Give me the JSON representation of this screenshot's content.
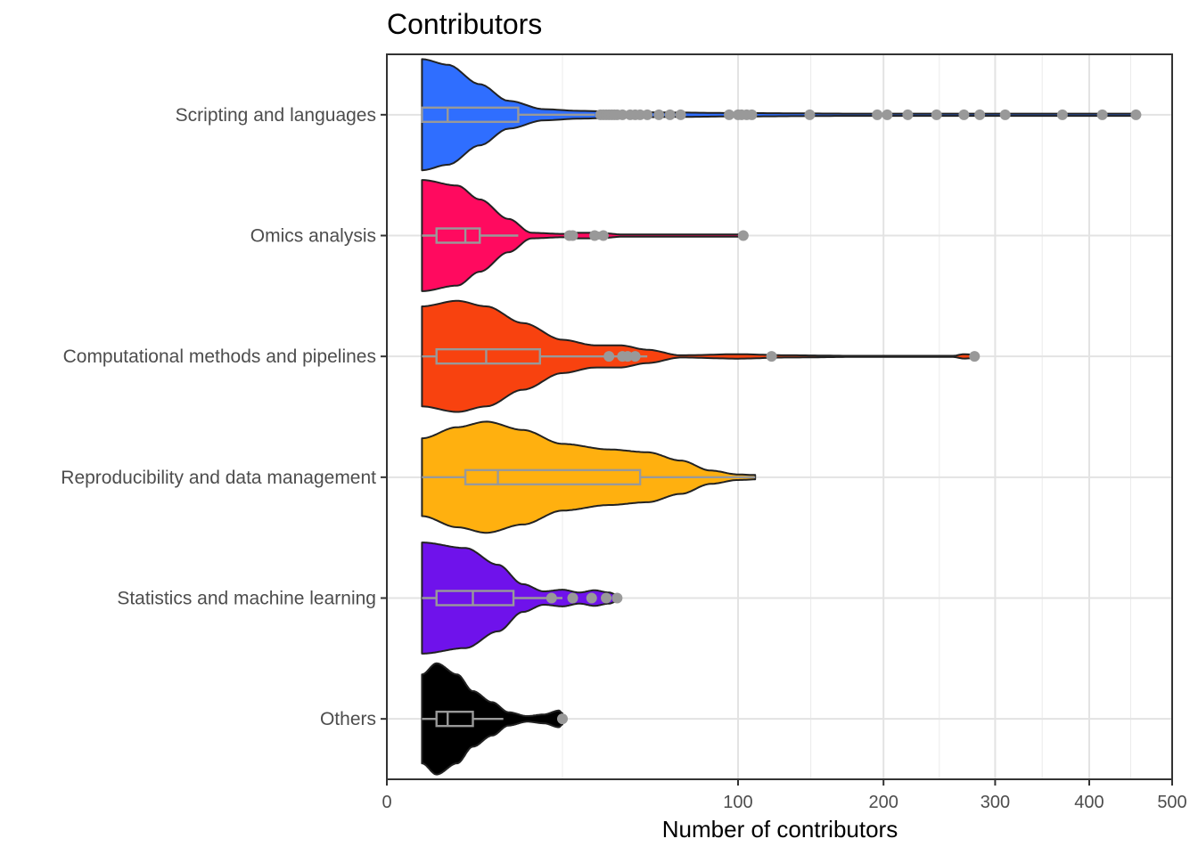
{
  "chart_data": {
    "type": "violin",
    "title": "Contributors",
    "xlabel": "Number of contributors",
    "ylabel": "",
    "x_scale": "sqrt",
    "xlim": [
      0,
      500
    ],
    "x_ticks": [
      0,
      100,
      200,
      300,
      400,
      500
    ],
    "x_tick_labels": [
      "0",
      "100",
      "200",
      "300",
      "400",
      "500"
    ],
    "grid": true,
    "legend": "none",
    "box_color": "#999999",
    "point_color": "#999999",
    "outline_color": "#222222",
    "series": [
      {
        "category": "Scripting and languages",
        "color": "#2F6EFF",
        "box": {
          "min": 1,
          "q1": 1,
          "median": 3,
          "q3": 14,
          "max": 35
        },
        "outliers": [
          37,
          38,
          39,
          40,
          41,
          42,
          43,
          45,
          48,
          50,
          52,
          55,
          60,
          65,
          70,
          95,
          100,
          102,
          105,
          108,
          145,
          195,
          203,
          220,
          245,
          270,
          285,
          310,
          370,
          415,
          455
        ],
        "density": [
          [
            1,
            1.0
          ],
          [
            3,
            0.9
          ],
          [
            7,
            0.55
          ],
          [
            12,
            0.25
          ],
          [
            20,
            0.1
          ],
          [
            30,
            0.07
          ],
          [
            45,
            0.05
          ],
          [
            65,
            0.04
          ],
          [
            100,
            0.03
          ],
          [
            180,
            0.02
          ],
          [
            300,
            0.02
          ],
          [
            400,
            0.02
          ],
          [
            455,
            0.02
          ]
        ]
      },
      {
        "category": "Omics analysis",
        "color": "#FF0A5F",
        "box": {
          "min": 1,
          "q1": 2,
          "median": 5,
          "q3": 7,
          "max": 14
        },
        "outliers": [
          27,
          28,
          35,
          38,
          103
        ],
        "density": [
          [
            1,
            1.0
          ],
          [
            4,
            0.9
          ],
          [
            7,
            0.65
          ],
          [
            12,
            0.3
          ],
          [
            17,
            0.05
          ],
          [
            25,
            0.03
          ],
          [
            30,
            0.05
          ],
          [
            36,
            0.05
          ],
          [
            45,
            0.02
          ],
          [
            70,
            0.02
          ],
          [
            103,
            0.02
          ]
        ]
      },
      {
        "category": "Computational methods and pipelines",
        "color": "#F8420F",
        "box": {
          "min": 1,
          "q1": 2,
          "median": 8,
          "q3": 19,
          "max": 55
        },
        "outliers": [
          40,
          45,
          47,
          50,
          120,
          280
        ],
        "density": [
          [
            1,
            0.9
          ],
          [
            4,
            1.0
          ],
          [
            8,
            0.9
          ],
          [
            15,
            0.6
          ],
          [
            25,
            0.3
          ],
          [
            35,
            0.2
          ],
          [
            44,
            0.2
          ],
          [
            55,
            0.12
          ],
          [
            70,
            0.02
          ],
          [
            100,
            0.04
          ],
          [
            130,
            0.02
          ],
          [
            180,
            0.01
          ],
          [
            230,
            0.01
          ],
          [
            260,
            0.01
          ],
          [
            270,
            0.04
          ],
          [
            280,
            0.03
          ]
        ]
      },
      {
        "category": "Reproducibility and data management",
        "color": "#FFB00F",
        "box": {
          "min": 1,
          "q1": 5,
          "median": 10,
          "q3": 52,
          "max": 110
        },
        "outliers": [],
        "density": [
          [
            1,
            0.7
          ],
          [
            4,
            0.9
          ],
          [
            8,
            1.0
          ],
          [
            15,
            0.85
          ],
          [
            25,
            0.6
          ],
          [
            40,
            0.5
          ],
          [
            55,
            0.45
          ],
          [
            70,
            0.3
          ],
          [
            85,
            0.12
          ],
          [
            100,
            0.05
          ],
          [
            110,
            0.04
          ]
        ]
      },
      {
        "category": "Statistics and machine learning",
        "color": "#6F12EB",
        "box": {
          "min": 1,
          "q1": 2,
          "median": 6,
          "q3": 13,
          "max": 25
        },
        "outliers": [
          22,
          28,
          34,
          39,
          43
        ],
        "density": [
          [
            1,
            1.0
          ],
          [
            5,
            0.9
          ],
          [
            10,
            0.6
          ],
          [
            15,
            0.25
          ],
          [
            20,
            0.12
          ],
          [
            25,
            0.15
          ],
          [
            30,
            0.1
          ],
          [
            35,
            0.14
          ],
          [
            40,
            0.1
          ],
          [
            43,
            0.06
          ]
        ]
      },
      {
        "category": "Others",
        "color": "#000000",
        "box": {
          "min": 1,
          "q1": 2,
          "median": 3,
          "q3": 6,
          "max": 11
        },
        "outliers": [
          25
        ],
        "density": [
          [
            1,
            0.8
          ],
          [
            2,
            1.0
          ],
          [
            4,
            0.8
          ],
          [
            6,
            0.5
          ],
          [
            9,
            0.3
          ],
          [
            12,
            0.12
          ],
          [
            16,
            0.05
          ],
          [
            20,
            0.08
          ],
          [
            24,
            0.15
          ],
          [
            25,
            0.1
          ]
        ]
      }
    ]
  }
}
